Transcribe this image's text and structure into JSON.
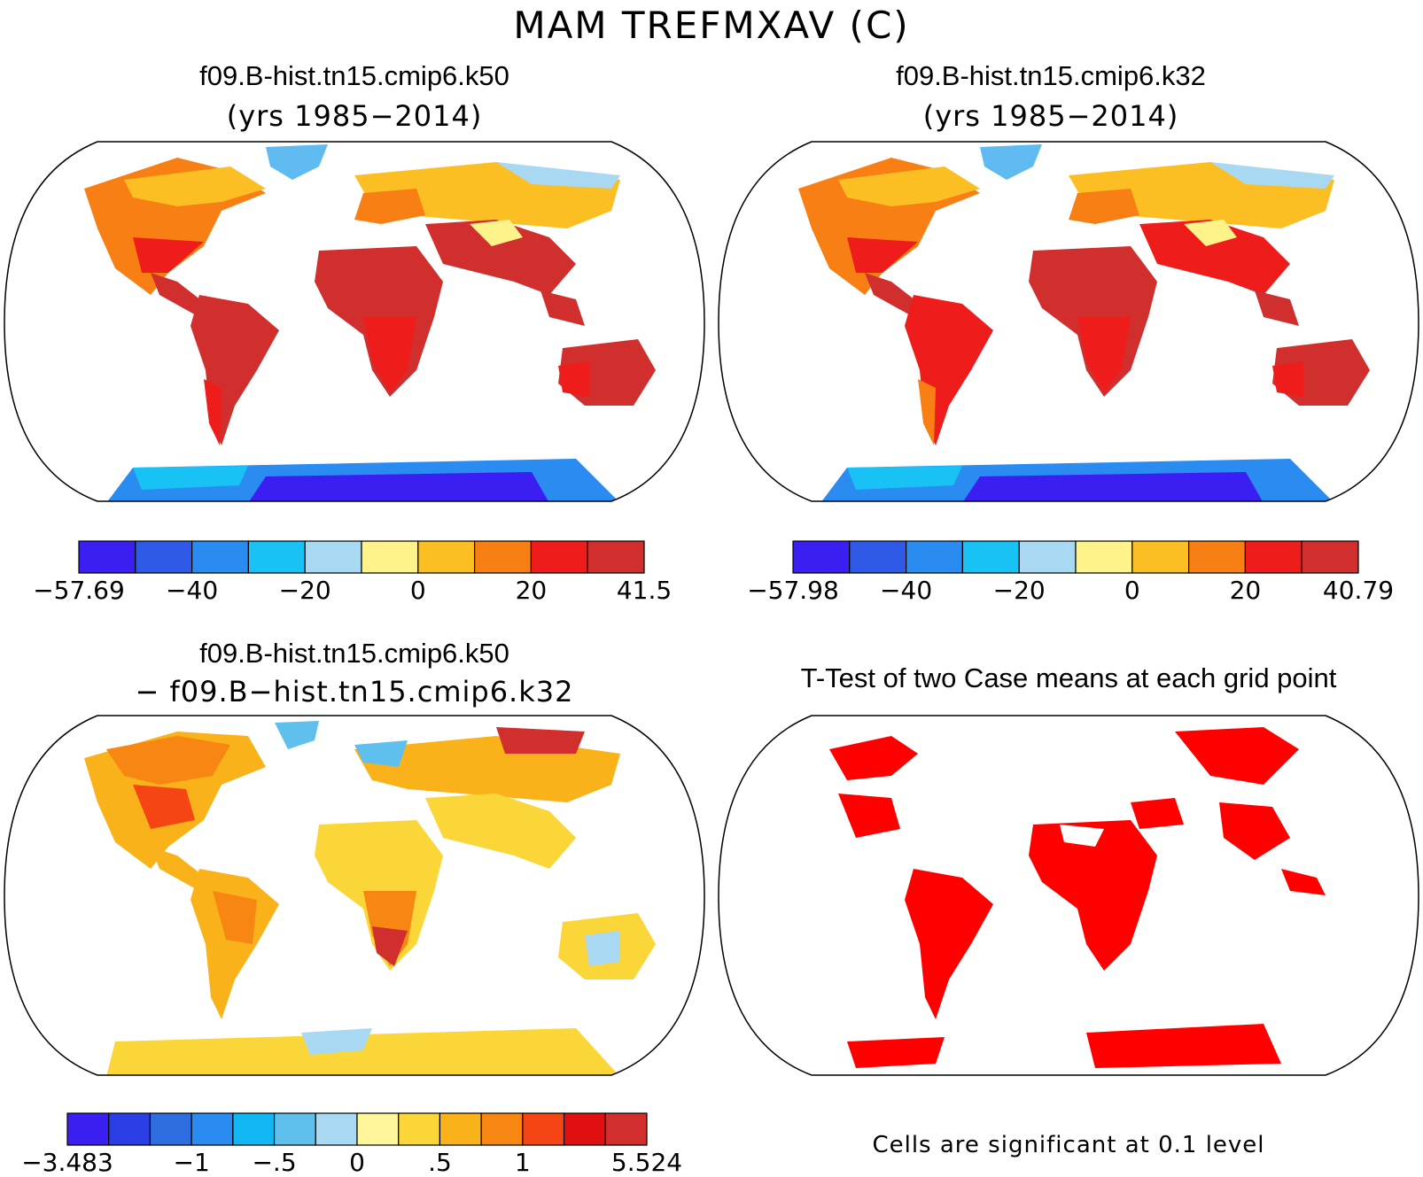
{
  "title": "MAM TREFMXAV (C)",
  "panels": {
    "top_left": {
      "title": "f09.B-hist.tn15.cmip6.k50",
      "subtitle": "(yrs 1985−2014)",
      "colorbar": {
        "colors": [
          "#3a1ef2",
          "#2f5ae8",
          "#2a8cf0",
          "#18c2f5",
          "#a9d9f2",
          "#fdf38a",
          "#fbbf24",
          "#f77f14",
          "#ef1c1c",
          "#d12e2e"
        ],
        "labels": [
          "−57.69",
          "−40",
          "−20",
          "0",
          "20",
          "41.5"
        ]
      }
    },
    "top_right": {
      "title": "f09.B-hist.tn15.cmip6.k32",
      "subtitle": "(yrs 1985−2014)",
      "colorbar": {
        "colors": [
          "#3a1ef2",
          "#2f5ae8",
          "#2a8cf0",
          "#18c2f5",
          "#a9d9f2",
          "#fdf38a",
          "#fbbf24",
          "#f77f14",
          "#ef1c1c",
          "#d12e2e"
        ],
        "labels": [
          "−57.98",
          "−40",
          "−20",
          "0",
          "20",
          "40.79"
        ]
      }
    },
    "bottom_left": {
      "title": "f09.B-hist.tn15.cmip6.k50",
      "subtitle": "− f09.B−hist.tn15.cmip6.k32",
      "colorbar": {
        "colors": [
          "#3a1ef2",
          "#2a3ee6",
          "#2f6ee0",
          "#2a8cf0",
          "#12b6f2",
          "#5fc0ee",
          "#a9d9f2",
          "#fff59a",
          "#fbd639",
          "#f9b21a",
          "#f78612",
          "#f54514",
          "#e01010",
          "#d12e2e"
        ],
        "labels": [
          "−3.483",
          "−1",
          "−.5",
          "0",
          ".5",
          "1",
          "5.524"
        ]
      }
    },
    "bottom_right": {
      "title": "T-Test of two Case means at each grid point",
      "footnote": "Cells are significant at 0.1 level",
      "colors": {
        "significant": "#ff0000"
      }
    }
  }
}
